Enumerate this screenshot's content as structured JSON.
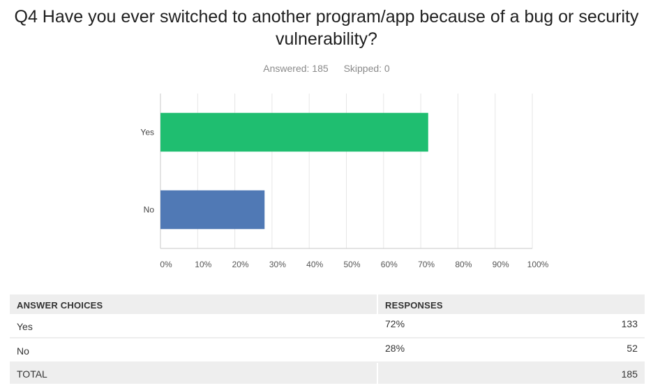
{
  "question": {
    "title": "Q4 Have you ever switched to another program/app because of a bug or security vulnerability?",
    "answered": "Answered: 185",
    "skipped": "Skipped: 0"
  },
  "chart_data": {
    "type": "bar",
    "orientation": "horizontal",
    "categories": [
      "Yes",
      "No"
    ],
    "values": [
      72,
      28
    ],
    "colors": [
      "#1fbe70",
      "#5079b5"
    ],
    "xlim": [
      0,
      100
    ],
    "xticks": [
      "0%",
      "10%",
      "20%",
      "30%",
      "40%",
      "50%",
      "60%",
      "70%",
      "80%",
      "90%",
      "100%"
    ],
    "grid": true
  },
  "table": {
    "header": {
      "choices": "ANSWER CHOICES",
      "responses": "RESPONSES"
    },
    "rows": [
      {
        "choice": "Yes",
        "percent": "72%",
        "count": "133"
      },
      {
        "choice": "No",
        "percent": "28%",
        "count": "52"
      }
    ],
    "total": {
      "label": "TOTAL",
      "count": "185"
    }
  }
}
